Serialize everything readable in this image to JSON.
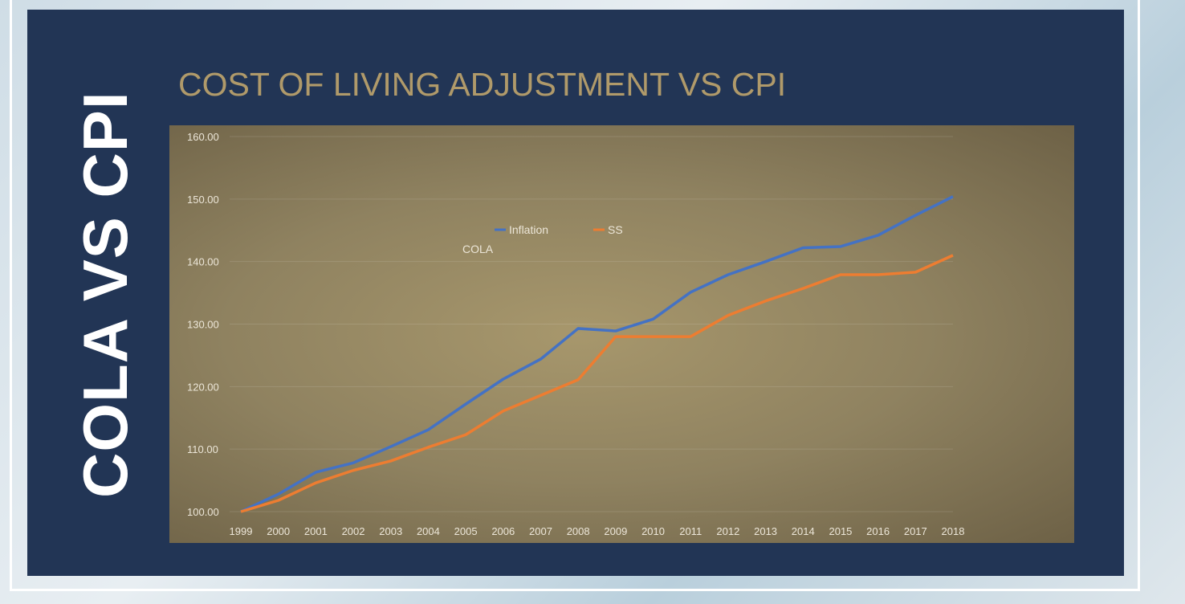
{
  "side_title": "COLA VS CPI",
  "heading": "COST OF LIVING ADJUSTMENT VS CPI",
  "chart_data": {
    "type": "line",
    "title": "COLA",
    "xlabel": "",
    "ylabel": "",
    "ylim": [
      100,
      160
    ],
    "yticks": [
      "100.00",
      "110.00",
      "120.00",
      "130.00",
      "140.00",
      "150.00",
      "160.00"
    ],
    "ytick_values": [
      100,
      110,
      120,
      130,
      140,
      150,
      160
    ],
    "grid": true,
    "legend_placement": "top-center",
    "x": [
      "1999",
      "2000",
      "2001",
      "2002",
      "2003",
      "2004",
      "2005",
      "2006",
      "2007",
      "2008",
      "2009",
      "2010",
      "2011",
      "2012",
      "2013",
      "2014",
      "2015",
      "2016",
      "2017",
      "2018"
    ],
    "series": [
      {
        "name": "Inflation",
        "color": "#4472c4",
        "values": [
          100,
          102.8,
          106.3,
          107.8,
          110.4,
          113.1,
          117.2,
          121.2,
          124.4,
          129.3,
          128.9,
          130.8,
          135.1,
          137.9,
          140.0,
          142.2,
          142.4,
          144.2,
          147.4,
          150.4
        ]
      },
      {
        "name": "SS",
        "color": "#ed7d31",
        "values": [
          100,
          101.8,
          104.6,
          106.6,
          108.1,
          110.3,
          112.3,
          116.1,
          118.6,
          121.1,
          128.0,
          128.0,
          128.0,
          131.4,
          133.7,
          135.7,
          137.9,
          137.9,
          138.3,
          141.0
        ]
      }
    ]
  }
}
